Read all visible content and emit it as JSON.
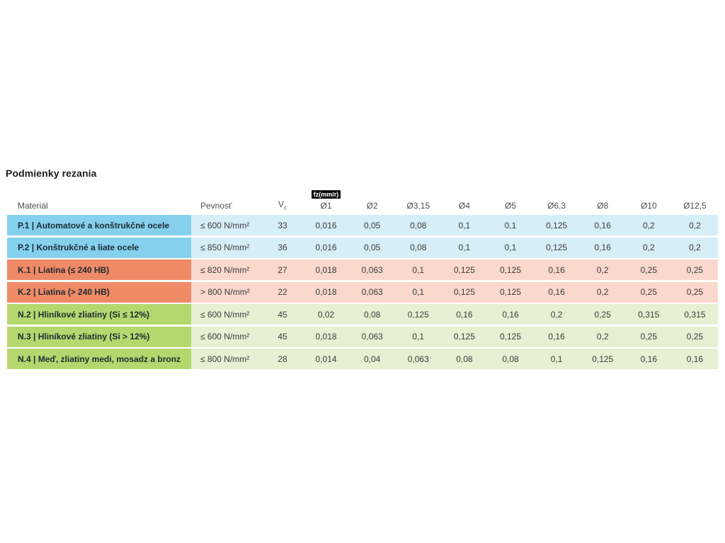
{
  "page": {
    "title": "Podmienky rezania"
  },
  "table": {
    "badge": "fz(mm/r)",
    "headers": {
      "material": "Materiál",
      "strength": "Pevnosť",
      "vc_main": "V",
      "vc_sub": "c",
      "diameters": [
        "Ø1",
        "Ø2",
        "Ø3,15",
        "Ø4",
        "Ø5",
        "Ø6,3",
        "Ø8",
        "Ø10",
        "Ø12,5"
      ]
    },
    "colors": {
      "steel_dark": "#85d1ed",
      "steel_light": "#d6eef8",
      "cast_dark": "#ef8a66",
      "cast_light": "#fad8cc",
      "nonfer_dark": "#b6d76e",
      "nonfer_light": "#e6f0d2"
    },
    "rows": [
      {
        "group": "steel",
        "material": "P.1 | Automatové a konštrukčné ocele",
        "strength": "≤ 600 N/mm²",
        "vc": "33",
        "values": [
          "0,016",
          "0,05",
          "0,08",
          "0,1",
          "0,1",
          "0,125",
          "0,16",
          "0,2",
          "0,2"
        ]
      },
      {
        "group": "steel",
        "material": "P.2 | Konštrukčné a liate ocele",
        "strength": "≤ 850 N/mm²",
        "vc": "36",
        "values": [
          "0,016",
          "0,05",
          "0,08",
          "0,1",
          "0,1",
          "0,125",
          "0,16",
          "0,2",
          "0,2"
        ]
      },
      {
        "group": "cast",
        "material": "K.1 | Liatina (≤ 240 HB)",
        "strength": "≤ 820 N/mm²",
        "vc": "27",
        "values": [
          "0,018",
          "0,063",
          "0,1",
          "0,125",
          "0,125",
          "0,16",
          "0,2",
          "0,25",
          "0,25"
        ]
      },
      {
        "group": "cast",
        "material": "K.2 | Liatina (> 240 HB)",
        "strength": "> 800 N/mm²",
        "vc": "22",
        "values": [
          "0,018",
          "0,063",
          "0,1",
          "0,125",
          "0,125",
          "0,16",
          "0,2",
          "0,25",
          "0,25"
        ]
      },
      {
        "group": "nonfer",
        "material": "N.2 | Hliníkové zliatiny (Si ≤ 12%)",
        "strength": "≤ 600 N/mm²",
        "vc": "45",
        "values": [
          "0,02",
          "0,08",
          "0,125",
          "0,16",
          "0,16",
          "0,2",
          "0,25",
          "0,315",
          "0,315"
        ]
      },
      {
        "group": "nonfer",
        "material": "N.3 | Hliníkové zliatiny (Si > 12%)",
        "strength": "≤ 600 N/mm²",
        "vc": "45",
        "values": [
          "0,018",
          "0,063",
          "0,1",
          "0,125",
          "0,125",
          "0,16",
          "0,2",
          "0,25",
          "0,25"
        ]
      },
      {
        "group": "nonfer",
        "material": "N.4 | Meď, zliatiny medi, mosadz a bronz",
        "strength": "≤ 800 N/mm²",
        "vc": "28",
        "values": [
          "0,014",
          "0,04",
          "0,063",
          "0,08",
          "0,08",
          "0,1",
          "0,125",
          "0,16",
          "0,16"
        ]
      }
    ]
  }
}
